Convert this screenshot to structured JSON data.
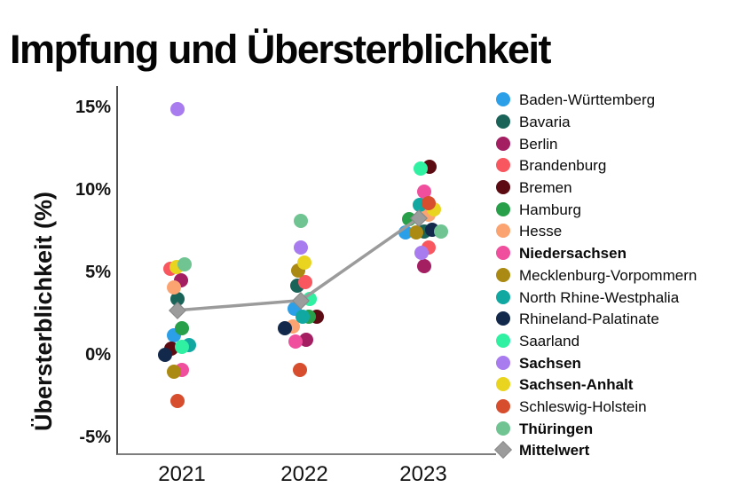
{
  "chart_data": {
    "type": "scatter",
    "title": "Impfung und Übersterblichkeit",
    "ylabel": "Übersterblichkeit  (%)",
    "xlabel": "",
    "categories": [
      "2021",
      "2022",
      "2023"
    ],
    "y_ticks": [
      {
        "label": "15%",
        "value": 15
      },
      {
        "label": "10%",
        "value": 10
      },
      {
        "label": "5%",
        "value": 5
      },
      {
        "label": "0%",
        "value": 0
      },
      {
        "label": "-5%",
        "value": -5
      }
    ],
    "ylim": [
      -6.3,
      16.3
    ],
    "grid": false,
    "legend_position": "right",
    "series": [
      {
        "name": "Baden-Württemberg",
        "color": "#2B9FE8",
        "bold": false,
        "values": [
          1.2,
          2.8,
          7.4
        ],
        "dx": [
          -9,
          -11,
          -20
        ]
      },
      {
        "name": "Bavaria",
        "color": "#1A6359",
        "bold": false,
        "values": [
          3.4,
          4.2,
          7.5
        ],
        "dx": [
          -5,
          -8,
          1
        ]
      },
      {
        "name": "Berlin",
        "color": "#A41E62",
        "bold": false,
        "values": [
          4.5,
          0.9,
          5.4
        ],
        "dx": [
          -1,
          2,
          1
        ]
      },
      {
        "name": "Brandenburg",
        "color": "#F9575F",
        "bold": false,
        "values": [
          5.2,
          4.4,
          6.5
        ],
        "dx": [
          -13,
          1,
          6
        ]
      },
      {
        "name": "Bremen",
        "color": "#5C0B12",
        "bold": false,
        "values": [
          0.4,
          2.3,
          11.4
        ],
        "dx": [
          -12,
          14,
          7
        ]
      },
      {
        "name": "Hamburg",
        "color": "#28A04A",
        "bold": false,
        "values": [
          1.6,
          2.3,
          8.2
        ],
        "dx": [
          0,
          5,
          -16
        ]
      },
      {
        "name": "Hesse",
        "color": "#FBA471",
        "bold": false,
        "values": [
          4.1,
          1.7,
          8.5
        ],
        "dx": [
          -9,
          -13,
          6
        ]
      },
      {
        "name": "Niedersachsen",
        "color": "#EF4F9D",
        "bold": true,
        "values": [
          -0.9,
          0.8,
          9.9
        ],
        "dx": [
          0,
          -10,
          1
        ]
      },
      {
        "name": "Mecklenburg-Vorpommern",
        "color": "#AA8A12",
        "bold": false,
        "values": [
          -1.0,
          5.1,
          7.4
        ],
        "dx": [
          -9,
          -7,
          -8
        ]
      },
      {
        "name": "North Rhine-Westphalia",
        "color": "#12A8A2",
        "bold": false,
        "values": [
          0.6,
          2.3,
          9.1
        ],
        "dx": [
          8,
          -2,
          -4
        ]
      },
      {
        "name": "Rhineland-Palatinate",
        "color": "#13294C",
        "bold": false,
        "values": [
          0.0,
          1.6,
          7.6
        ],
        "dx": [
          -19,
          -22,
          10
        ]
      },
      {
        "name": "Saarland",
        "color": "#30F0A2",
        "bold": false,
        "values": [
          0.5,
          3.4,
          11.3
        ],
        "dx": [
          0,
          6,
          -3
        ]
      },
      {
        "name": "Sachsen",
        "color": "#A87CEF",
        "bold": true,
        "values": [
          14.9,
          6.5,
          6.2
        ],
        "dx": [
          -5,
          -4,
          -2
        ]
      },
      {
        "name": "Sachsen-Anhalt",
        "color": "#E9D420",
        "bold": true,
        "values": [
          5.3,
          5.6,
          8.8
        ],
        "dx": [
          -6,
          0,
          12
        ]
      },
      {
        "name": "Schleswig-Holstein",
        "color": "#D64E2E",
        "bold": false,
        "values": [
          -2.8,
          -0.9,
          9.2
        ],
        "dx": [
          -5,
          -5,
          6
        ]
      },
      {
        "name": "Thüringen",
        "color": "#6FC492",
        "bold": true,
        "values": [
          5.5,
          8.1,
          7.5
        ],
        "dx": [
          3,
          -4,
          20
        ]
      }
    ],
    "mean_series": {
      "name": "Mittelwert",
      "color": "#9C9C9C",
      "line_color": "#9B9B9B",
      "marker": "diamond",
      "bold": true,
      "values": [
        2.7,
        3.3,
        8.3
      ],
      "dx": [
        -5,
        -4,
        -5
      ]
    }
  }
}
